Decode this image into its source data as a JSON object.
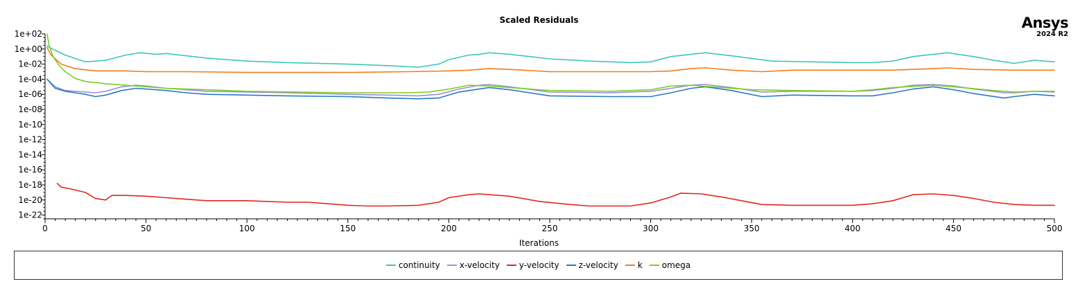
{
  "brand": {
    "name": "Ansys",
    "version": "2024 R2"
  },
  "chart_data": {
    "type": "line",
    "title": "Scaled Residuals",
    "xlabel": "Iterations",
    "ylabel": "",
    "xlim": [
      0,
      500
    ],
    "ylim_log10": [
      -22.5,
      2
    ],
    "yscale": "log",
    "x_ticks": [
      0,
      50,
      100,
      150,
      200,
      250,
      300,
      350,
      400,
      450,
      500
    ],
    "x_tick_labels": [
      "0",
      "50",
      "100",
      "150",
      "200",
      "250",
      "300",
      "350",
      "400",
      "450",
      "500"
    ],
    "y_ticks_exp": [
      2,
      0,
      -2,
      -4,
      -6,
      -8,
      -10,
      -12,
      -14,
      -16,
      -18,
      -20,
      -22
    ],
    "y_tick_labels": [
      "1e+02",
      "1e+00",
      "1e-02",
      "1e-04",
      "1e-06",
      "1e-08",
      "1e-10",
      "1e-12",
      "1e-14",
      "1e-16",
      "1e-18",
      "1e-20",
      "1e-22"
    ],
    "legend_position": "bottom",
    "grid": false,
    "series": [
      {
        "name": "continuity",
        "color": "#3cc6b8",
        "x": [
          1,
          3,
          10,
          20,
          30,
          40,
          47,
          55,
          60,
          70,
          80,
          100,
          120,
          150,
          170,
          185,
          195,
          200,
          210,
          215,
          220,
          230,
          250,
          270,
          290,
          300,
          310,
          320,
          327,
          340,
          360,
          380,
          400,
          410,
          420,
          430,
          440,
          447,
          460,
          470,
          480,
          490,
          500
        ],
        "y_exp": [
          0.4,
          0.1,
          -0.8,
          -1.7,
          -1.5,
          -0.8,
          -0.5,
          -0.7,
          -0.6,
          -0.9,
          -1.2,
          -1.6,
          -1.8,
          -2.0,
          -2.2,
          -2.4,
          -2.0,
          -1.4,
          -0.8,
          -0.7,
          -0.5,
          -0.7,
          -1.3,
          -1.6,
          -1.8,
          -1.7,
          -1.0,
          -0.7,
          -0.5,
          -0.9,
          -1.6,
          -1.7,
          -1.8,
          -1.8,
          -1.6,
          -1.0,
          -0.7,
          -0.5,
          -1.0,
          -1.5,
          -1.9,
          -1.5,
          -1.7
        ]
      },
      {
        "name": "x-velocity",
        "color": "#9b8fd6",
        "x": [
          1,
          5,
          10,
          20,
          25,
          30,
          38,
          45,
          50,
          60,
          70,
          80,
          100,
          120,
          150,
          170,
          185,
          195,
          205,
          215,
          220,
          230,
          250,
          280,
          300,
          310,
          320,
          327,
          340,
          355,
          370,
          400,
          410,
          420,
          430,
          440,
          450,
          460,
          475,
          480,
          490,
          500
        ],
        "y_exp": [
          -4.0,
          -5.0,
          -5.5,
          -5.7,
          -5.8,
          -5.6,
          -5.0,
          -4.8,
          -4.9,
          -5.2,
          -5.4,
          -5.6,
          -5.7,
          -5.8,
          -6.0,
          -6.1,
          -6.2,
          -6.0,
          -5.3,
          -4.8,
          -4.7,
          -5.0,
          -5.7,
          -5.8,
          -5.6,
          -5.2,
          -4.8,
          -4.7,
          -5.1,
          -5.7,
          -5.6,
          -5.6,
          -5.5,
          -5.2,
          -4.8,
          -4.7,
          -4.9,
          -5.3,
          -5.8,
          -5.8,
          -5.6,
          -5.7
        ]
      },
      {
        "name": "y-velocity",
        "color": "#e0271b",
        "x": [
          6,
          8,
          12,
          20,
          25,
          30,
          33,
          40,
          50,
          60,
          70,
          80,
          90,
          100,
          110,
          120,
          130,
          140,
          150,
          160,
          170,
          185,
          195,
          200,
          210,
          215,
          220,
          230,
          245,
          260,
          270,
          290,
          300,
          310,
          315,
          325,
          335,
          345,
          355,
          370,
          400,
          410,
          420,
          430,
          440,
          450,
          460,
          470,
          480,
          490,
          500
        ],
        "y_exp": [
          -17.8,
          -18.3,
          -18.5,
          -19.0,
          -19.8,
          -20.0,
          -19.4,
          -19.4,
          -19.5,
          -19.7,
          -19.9,
          -20.1,
          -20.1,
          -20.1,
          -20.2,
          -20.3,
          -20.3,
          -20.5,
          -20.7,
          -20.8,
          -20.8,
          -20.7,
          -20.3,
          -19.7,
          -19.3,
          -19.2,
          -19.3,
          -19.5,
          -20.2,
          -20.6,
          -20.8,
          -20.8,
          -20.4,
          -19.6,
          -19.1,
          -19.2,
          -19.6,
          -20.1,
          -20.6,
          -20.7,
          -20.7,
          -20.5,
          -20.1,
          -19.3,
          -19.2,
          -19.4,
          -19.8,
          -20.3,
          -20.6,
          -20.7,
          -20.7
        ]
      },
      {
        "name": "z-velocity",
        "color": "#2a78c8",
        "x": [
          1,
          5,
          10,
          15,
          20,
          25,
          30,
          38,
          45,
          50,
          60,
          70,
          80,
          100,
          120,
          150,
          170,
          185,
          195,
          205,
          215,
          220,
          230,
          250,
          280,
          300,
          310,
          320,
          327,
          340,
          355,
          370,
          400,
          410,
          420,
          430,
          440,
          450,
          460,
          475,
          480,
          490,
          500
        ],
        "y_exp": [
          -4.0,
          -5.2,
          -5.6,
          -5.8,
          -6.0,
          -6.3,
          -6.1,
          -5.5,
          -5.2,
          -5.3,
          -5.5,
          -5.8,
          -6.0,
          -6.1,
          -6.2,
          -6.3,
          -6.5,
          -6.6,
          -6.5,
          -5.7,
          -5.3,
          -5.1,
          -5.4,
          -6.2,
          -6.3,
          -6.3,
          -5.8,
          -5.2,
          -5.0,
          -5.5,
          -6.3,
          -6.1,
          -6.2,
          -6.2,
          -5.8,
          -5.3,
          -5.0,
          -5.4,
          -5.9,
          -6.5,
          -6.3,
          -6.0,
          -6.2
        ]
      },
      {
        "name": "k",
        "color": "#f07c1e",
        "x": [
          1,
          3,
          8,
          15,
          25,
          40,
          50,
          70,
          100,
          150,
          180,
          200,
          210,
          220,
          230,
          250,
          280,
          300,
          310,
          320,
          327,
          340,
          355,
          370,
          400,
          420,
          440,
          447,
          460,
          480,
          500
        ],
        "y_exp": [
          0.2,
          -0.8,
          -2.0,
          -2.6,
          -2.9,
          -2.9,
          -3.0,
          -3.0,
          -3.1,
          -3.1,
          -3.0,
          -2.9,
          -2.8,
          -2.6,
          -2.7,
          -3.0,
          -3.0,
          -3.0,
          -2.9,
          -2.6,
          -2.5,
          -2.8,
          -3.0,
          -2.8,
          -2.8,
          -2.8,
          -2.6,
          -2.5,
          -2.7,
          -2.8,
          -2.8
        ]
      },
      {
        "name": "omega",
        "color": "#7ccf1e",
        "x": [
          1,
          2,
          4,
          7,
          10,
          15,
          20,
          30,
          40,
          50,
          60,
          80,
          100,
          150,
          180,
          190,
          200,
          210,
          220,
          230,
          250,
          280,
          300,
          310,
          320,
          330,
          350,
          370,
          400,
          410,
          420,
          440,
          450,
          470,
          480,
          490,
          500
        ],
        "y_exp": [
          2.0,
          0.5,
          -1.0,
          -2.2,
          -3.0,
          -3.9,
          -4.3,
          -4.6,
          -4.8,
          -5.0,
          -5.2,
          -5.4,
          -5.6,
          -5.8,
          -5.8,
          -5.7,
          -5.3,
          -4.8,
          -4.9,
          -5.1,
          -5.5,
          -5.6,
          -5.4,
          -4.9,
          -4.8,
          -5.0,
          -5.4,
          -5.5,
          -5.6,
          -5.4,
          -5.1,
          -4.8,
          -5.0,
          -5.5,
          -5.7,
          -5.6,
          -5.6
        ]
      }
    ]
  }
}
